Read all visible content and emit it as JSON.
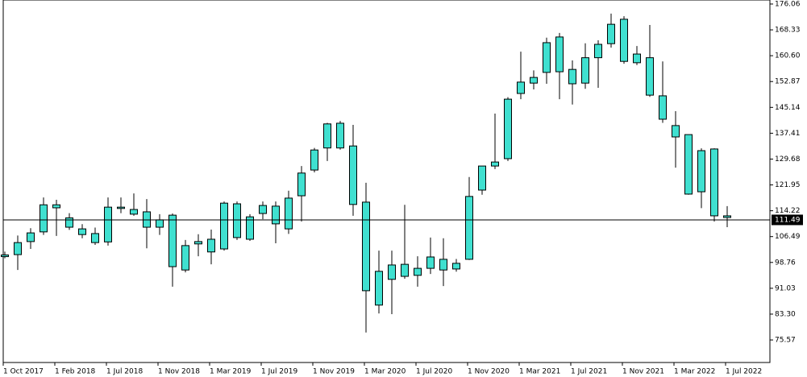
{
  "chart_data": {
    "type": "candlestick",
    "categories": [
      "1 Oct 2017",
      null,
      null,
      null,
      "1 Feb 2018",
      null,
      null,
      null,
      "1 Jul 2018",
      null,
      null,
      null,
      "1 Nov 2018",
      null,
      null,
      null,
      "1 Mar 2019",
      null,
      null,
      null,
      "1 Jul 2019",
      null,
      null,
      null,
      "1 Nov 2019",
      null,
      null,
      null,
      "1 Mar 2020",
      null,
      null,
      null,
      "1 Jul 2020",
      null,
      null,
      null,
      "1 Nov 2020",
      null,
      null,
      null,
      "1 Mar 2021",
      null,
      null,
      null,
      "1 Jul 2021",
      null,
      null,
      null,
      "1 Nov 2021",
      null,
      null,
      null,
      "1 Mar 2022",
      null,
      null,
      null,
      "1 Jul 2022"
    ],
    "open": [
      101,
      101.1,
      105.0,
      107.9,
      116,
      112.1,
      108.8,
      107.4,
      104.9,
      114.9,
      114.6,
      113.9,
      109.3,
      112.9,
      96.5,
      104.3,
      101.9,
      102.8,
      116.3,
      112.4,
      113.4,
      110.3,
      108.8,
      118.7,
      126.4,
      133,
      133,
      133.6,
      116.8,
      86,
      93.7,
      94.6,
      94.9,
      97,
      99.7,
      96.8,
      99.7,
      120.4,
      127.6,
      129.8,
      149.3,
      152.4,
      155.6,
      155.8,
      156.5,
      152.4,
      160,
      164.2,
      171.5,
      161.1,
      160,
      148.6,
      139.7,
      137,
      119.9,
      132.7,
      112.7
    ],
    "high": [
      102,
      106.8,
      109,
      118.2,
      117.5,
      113.5,
      110.2,
      109.2,
      118.2,
      118.2,
      119.4,
      117.7,
      113.2,
      113.4,
      105.5,
      107.2,
      108.6,
      117,
      117,
      113.2,
      117,
      117,
      120.2,
      127.6,
      133,
      140.5,
      141.1,
      139.9,
      122.6,
      102.3,
      102.3,
      116,
      100.6,
      106.2,
      106,
      99.8,
      124.3,
      127.6,
      143.3,
      148.2,
      161.8,
      156.2,
      166,
      167.4,
      159.2,
      164.3,
      165.2,
      173.2,
      172.4,
      163.5,
      169.8,
      158.9,
      144,
      137,
      132.9,
      132.9,
      115.6
    ],
    "low": [
      100,
      96.5,
      102.8,
      107,
      106.7,
      108.5,
      106,
      104,
      103.8,
      113.5,
      112.7,
      103,
      107,
      91.5,
      95.8,
      100.6,
      98.2,
      102.3,
      105.5,
      105.2,
      111.7,
      104.5,
      107.3,
      111,
      125.7,
      129.1,
      132.5,
      112.7,
      77.8,
      83.5,
      83.3,
      93.9,
      91.5,
      95.3,
      91.7,
      96,
      99.5,
      119,
      126.7,
      129.1,
      147.6,
      150.5,
      152.2,
      147.6,
      146,
      150.7,
      151,
      163,
      158.2,
      157.8,
      148.3,
      140.5,
      127.1,
      119,
      115,
      111,
      109.3
    ],
    "close": [
      100.5,
      104.7,
      107.6,
      116,
      115.1,
      109.3,
      107.1,
      104.7,
      115.3,
      115.3,
      113.2,
      109.3,
      111.5,
      97.5,
      103.8,
      105,
      105.7,
      116.5,
      106.2,
      105.7,
      115.8,
      115.6,
      118,
      125.5,
      132.4,
      140.2,
      140.4,
      116.1,
      90.3,
      96.1,
      98,
      98.2,
      97,
      100.4,
      96.5,
      98.5,
      118.5,
      127.6,
      128.8,
      147.6,
      152.7,
      154.1,
      164.5,
      166.2,
      152.2,
      160,
      164,
      170,
      158.9,
      158.5,
      148.8,
      141.6,
      136.3,
      119.2,
      132.2,
      112.7,
      112.2
    ],
    "color": "#40e0d0",
    "last_price": 111.49,
    "ylim": [
      68.83,
      177.26
    ],
    "yticks": [
      {
        "value": 75.57,
        "label": "75.57"
      },
      {
        "value": 83.3,
        "label": "83.30"
      },
      91.03,
      98.76,
      106.49,
      114.22,
      121.95,
      129.68,
      137.41,
      145.14,
      152.87,
      {
        "value": 160.6,
        "label": "160.60"
      },
      168.33,
      176.06
    ]
  }
}
